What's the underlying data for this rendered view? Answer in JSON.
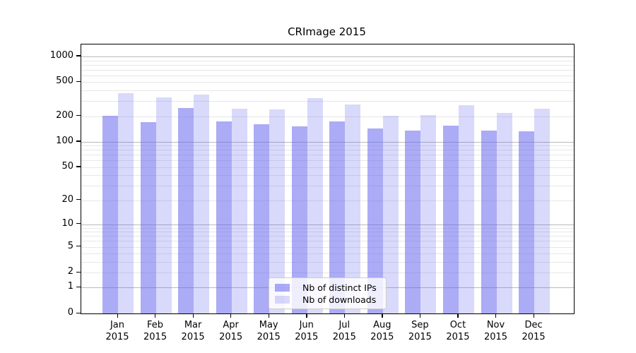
{
  "chart_data": {
    "type": "bar",
    "title": "CRImage 2015",
    "categories": [
      "Jan",
      "Feb",
      "Mar",
      "Apr",
      "May",
      "Jun",
      "Jul",
      "Aug",
      "Sep",
      "Oct",
      "Nov",
      "Dec"
    ],
    "category_sublabel": "2015",
    "series": [
      {
        "name": "Nb of distinct IPs",
        "color": "rgba(102,102,238,0.55)",
        "color_hex_on_white": "#aaaaf6",
        "values": [
          203,
          170,
          250,
          174,
          161,
          152,
          174,
          144,
          136,
          155,
          136,
          133
        ]
      },
      {
        "name": "Nb of downloads",
        "color": "rgba(102,102,238,0.25)",
        "color_hex_on_white": "#d9d9f8",
        "values": [
          372,
          333,
          359,
          246,
          240,
          327,
          274,
          203,
          207,
          269,
          218,
          245
        ]
      }
    ],
    "xlabel": "",
    "ylabel": "",
    "y_ticks": [
      0,
      1,
      2,
      5,
      10,
      20,
      50,
      100,
      200,
      500,
      1000
    ],
    "y_scale": "log10(value+1)",
    "ylim": [
      0,
      1380
    ],
    "grid": true,
    "grid_major_color": "#b9b9b9",
    "grid_minor_color": "#e7e7e7",
    "axis_color": "#000000",
    "legend_position": "lower-center"
  }
}
